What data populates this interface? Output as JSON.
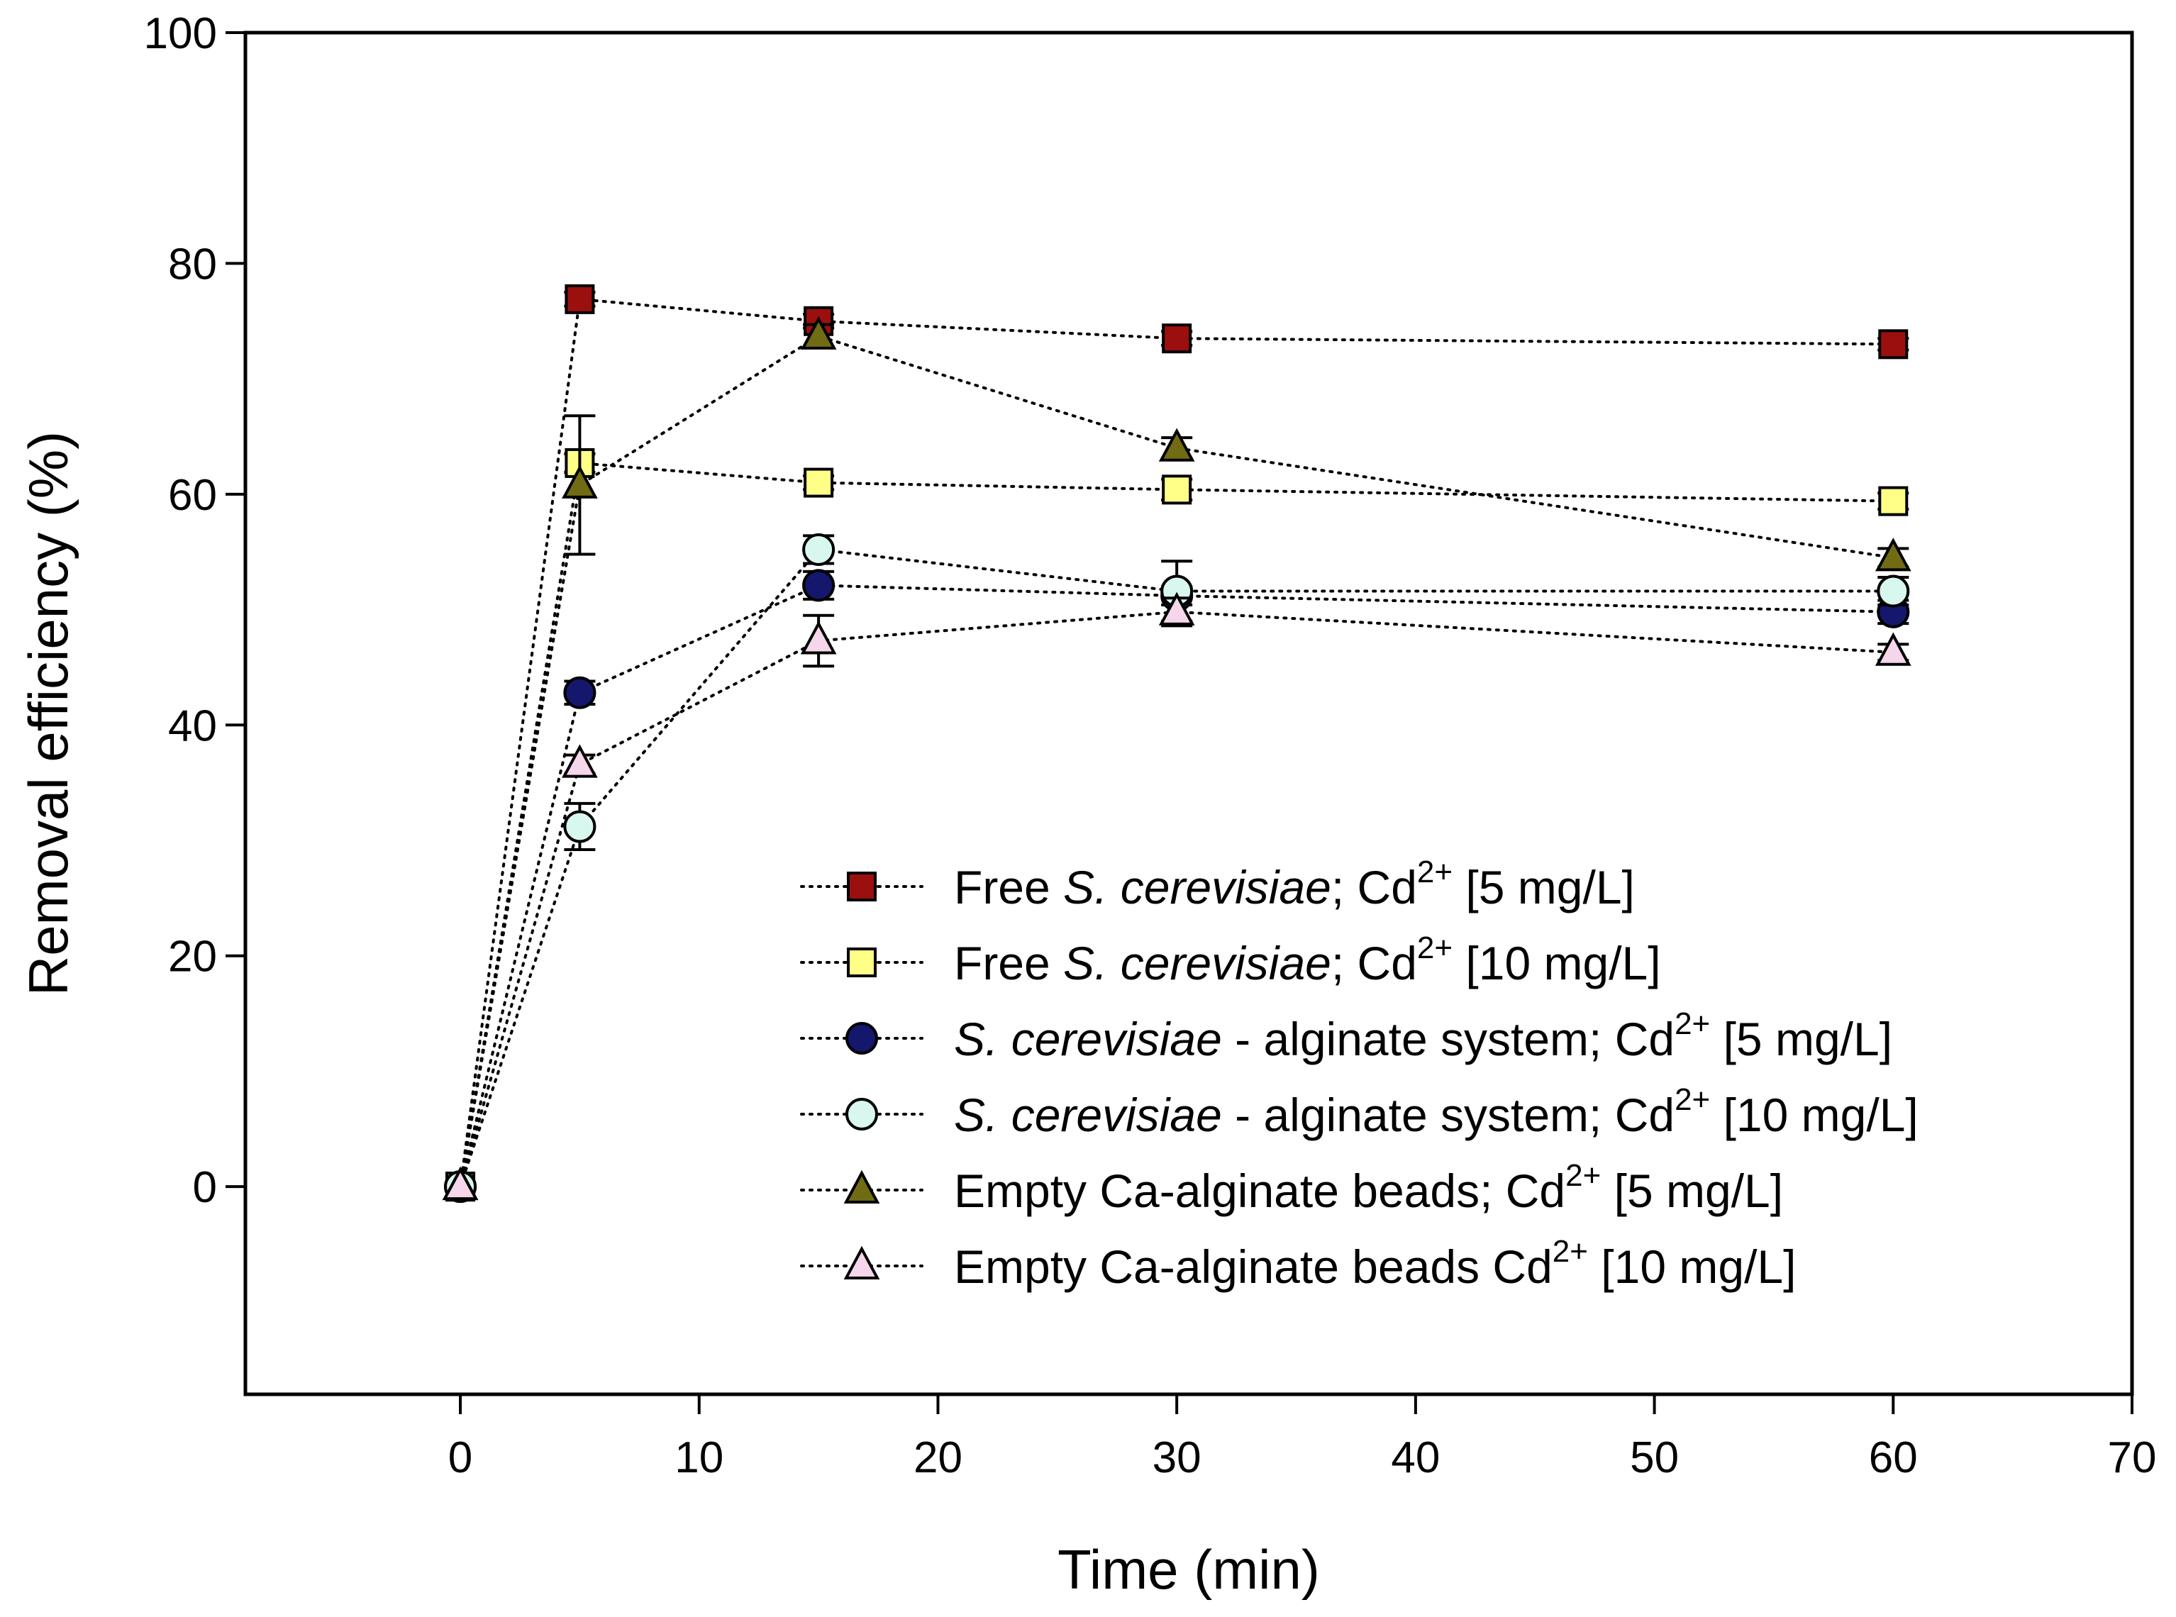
{
  "chart_data": {
    "type": "scatter",
    "xlabel": "Time (min)",
    "ylabel": "Removal efficiency (%)",
    "xlim": [
      -9,
      70
    ],
    "ylim": [
      -18,
      100
    ],
    "xticks": [
      0,
      10,
      20,
      30,
      40,
      50,
      60,
      70
    ],
    "yticks": [
      0,
      20,
      40,
      60,
      80,
      100
    ],
    "grid": false,
    "legend_position": "bottom-right",
    "series": [
      {
        "name": "Free S. cerevisiae; Cd2+ [5 mg/L]",
        "legend": {
          "pre": "Free ",
          "italic": "S. cerevisiae",
          "mid": "; Cd",
          "sup": "2+",
          "post": " [5 mg/L]"
        },
        "marker": "square",
        "color": "#9b0f0f",
        "x": [
          0,
          5,
          15,
          30,
          60
        ],
        "y": [
          0,
          76.9,
          75.0,
          73.5,
          73.0
        ],
        "err": [
          0,
          0.6,
          0.6,
          0.6,
          0.5
        ]
      },
      {
        "name": "Free S. cerevisiae; Cd2+ [10 mg/L]",
        "legend": {
          "pre": "Free ",
          "italic": "S. cerevisiae",
          "mid": "; Cd",
          "sup": "2+",
          "post": " [10 mg/L]"
        },
        "marker": "square",
        "color": "#ffff88",
        "x": [
          0,
          5,
          15,
          30,
          60
        ],
        "y": [
          0,
          62.7,
          61.0,
          60.4,
          59.4
        ],
        "err": [
          0,
          0.8,
          0.6,
          0.9,
          0.7
        ]
      },
      {
        "name": "S. cerevisiae - alginate system; Cd2+ [5 mg/L]",
        "legend": {
          "pre": "",
          "italic": "S. cerevisiae",
          "mid": " - alginate system; Cd",
          "sup": "2+",
          "post": " [5 mg/L]"
        },
        "marker": "circle",
        "color": "#14176b",
        "x": [
          0,
          5,
          15,
          30,
          60
        ],
        "y": [
          0,
          42.8,
          52.1,
          51.2,
          49.8
        ],
        "err": [
          0,
          1.0,
          1.2,
          0.8,
          1.0
        ]
      },
      {
        "name": "S. cerevisiae - alginate system; Cd2+ [10 mg/L]",
        "legend": {
          "pre": "",
          "italic": "S. cerevisiae",
          "mid": " - alginate system; Cd",
          "sup": "2+",
          "post": " [10 mg/L]"
        },
        "marker": "circle",
        "color": "#d8f7ef",
        "x": [
          0,
          5,
          15,
          30,
          60
        ],
        "y": [
          0,
          31.2,
          55.2,
          51.6,
          51.6
        ],
        "err": [
          0,
          2.0,
          1.2,
          2.6,
          1.2
        ]
      },
      {
        "name": "Empty Ca-alginate beads; Cd2+ [5 mg/L]",
        "legend": {
          "pre": "Empty Ca-alginate beads; Cd",
          "italic": "",
          "mid": "",
          "sup": "2+",
          "post": " [5 mg/L]"
        },
        "marker": "triangle",
        "color": "#716c13",
        "x": [
          0,
          5,
          15,
          30,
          60
        ],
        "y": [
          0,
          60.8,
          73.7,
          64.0,
          54.5
        ],
        "err": [
          0,
          6.0,
          1.0,
          0.9,
          0.8
        ]
      },
      {
        "name": "Empty Ca-alginate beads Cd2+ [10 mg/L]",
        "legend": {
          "pre": "Empty Ca-alginate beads Cd",
          "italic": "",
          "mid": "",
          "sup": "2+",
          "post": " [10 mg/L]"
        },
        "marker": "triangle",
        "color": "#f6d6ea",
        "x": [
          0,
          5,
          15,
          30,
          60
        ],
        "y": [
          0,
          36.6,
          47.3,
          49.8,
          46.3
        ],
        "err": [
          0,
          0.8,
          2.2,
          1.2,
          0.7
        ]
      }
    ]
  }
}
